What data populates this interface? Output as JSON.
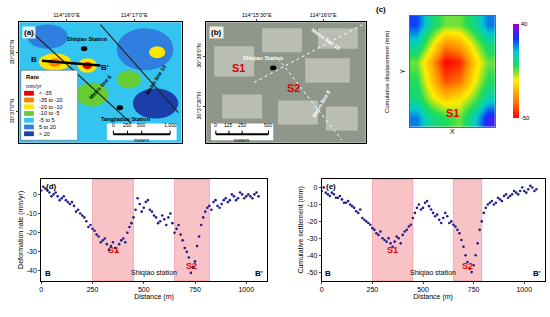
{
  "chart_data": [
    {
      "type": "map",
      "panel": "(a)",
      "xlim": [
        114.255,
        114.295
      ],
      "ylim": [
        30.608,
        30.642
      ],
      "xticks": [
        {
          "value": 114.26667,
          "label": "114°16'0\"E"
        },
        {
          "value": 114.28333,
          "label": "114°17'0\"E"
        }
      ],
      "yticks": [
        {
          "value": 30.61667,
          "label": "30°37'0\"N"
        },
        {
          "value": 30.63333,
          "label": "30°38'0\"N"
        }
      ],
      "grid": false,
      "annotations": [
        "Shiqiao Station",
        "Metro line 6",
        "Metro line 10",
        "Tangjiadun Station",
        "B",
        "B'"
      ],
      "classes_title": "Rate",
      "classes_unit": "mm/yr",
      "classes": [
        {
          "label": "< -35",
          "color": "#e60000"
        },
        {
          "label": "-35 to -20",
          "color": "#ff8000"
        },
        {
          "label": "-20 to -10",
          "color": "#ffe600"
        },
        {
          "label": "-10 to -5",
          "color": "#66cc33"
        },
        {
          "label": "-5 to 5",
          "color": "#33c4f0"
        },
        {
          "label": "5 to 20",
          "color": "#2f7fe0"
        },
        {
          "label": "> 20",
          "color": "#1a3faa"
        }
      ],
      "scale_bar": {
        "ticks": [
          0,
          250,
          500,
          {
            "value": 1000,
            "label": "1,000"
          }
        ],
        "unit": "meters"
      }
    },
    {
      "type": "map",
      "panel": "(b)",
      "xlim": [
        114.252,
        114.272
      ],
      "ylim": [
        30.619,
        30.639
      ],
      "xticks": [
        {
          "value": 114.25833,
          "label": "114°15'30\"E"
        },
        {
          "value": 114.26667,
          "label": "114°16'0\"E"
        }
      ],
      "yticks": [
        {
          "value": 30.625,
          "label": "30°37'30\"N"
        },
        {
          "value": 30.63333,
          "label": "30°38'0\"N"
        }
      ],
      "grid": false,
      "annotations": [
        "S1",
        "S2",
        "Shiqiao Station",
        "Metro line 10",
        "Metro line 6"
      ],
      "scale_bar": {
        "ticks": [
          0,
          125,
          250,
          500
        ],
        "unit": "meters"
      }
    },
    {
      "type": "heatmap",
      "panel": "(c)",
      "z": [
        [
          20,
          5,
          0,
          -5,
          10,
          30
        ],
        [
          5,
          -10,
          -20,
          -15,
          -5,
          10
        ],
        [
          0,
          -20,
          -40,
          -35,
          -15,
          0
        ],
        [
          -5,
          -25,
          -50,
          -45,
          -20,
          -5
        ],
        [
          10,
          -10,
          -30,
          -25,
          -10,
          5
        ],
        [
          25,
          5,
          -5,
          -5,
          5,
          20
        ]
      ],
      "clim": [
        -50,
        40
      ],
      "cticks": [
        -50,
        40
      ],
      "x_label": "X",
      "y_label": "Y",
      "z_label": "Cumulative displacement (mm)",
      "tick_labels": false,
      "annotations": [
        "S1"
      ]
    },
    {
      "type": "scatter",
      "panel": "(d)",
      "color": "#1f1f8f",
      "marker": "circle",
      "grid": false,
      "x_label": "Distance (m)",
      "y_label": "Deformation rate (mm/yr)",
      "xlim": [
        0,
        1100
      ],
      "xticks": [
        0,
        250,
        500,
        750,
        1000
      ],
      "ylim": [
        -45,
        8
      ],
      "yticks": [
        -40,
        -30,
        -20,
        -10,
        0
      ],
      "regions": [
        {
          "label": "S1",
          "x": [
            250,
            450
          ]
        },
        {
          "label": "S2",
          "x": [
            650,
            820
          ]
        }
      ],
      "annotations": [
        "Shiqiao station",
        "B",
        "B'"
      ],
      "x": [
        0,
        10,
        20,
        30,
        40,
        50,
        60,
        70,
        80,
        90,
        100,
        110,
        120,
        130,
        140,
        150,
        160,
        170,
        180,
        190,
        200,
        210,
        220,
        230,
        240,
        250,
        260,
        270,
        280,
        290,
        300,
        310,
        320,
        330,
        340,
        350,
        360,
        370,
        380,
        390,
        400,
        410,
        420,
        430,
        440,
        450,
        460,
        470,
        480,
        490,
        500,
        510,
        520,
        530,
        540,
        550,
        560,
        570,
        580,
        590,
        600,
        610,
        620,
        630,
        640,
        650,
        660,
        670,
        680,
        690,
        700,
        710,
        720,
        730,
        740,
        750,
        760,
        770,
        780,
        790,
        800,
        810,
        820,
        830,
        840,
        850,
        860,
        870,
        880,
        890,
        900,
        910,
        920,
        930,
        940,
        950,
        960,
        970,
        980,
        990,
        1000,
        1010,
        1020,
        1030,
        1040,
        1050,
        1060
      ],
      "values": [
        2,
        4,
        3,
        2,
        1,
        -1,
        0,
        1,
        -1,
        -3,
        -2,
        -1,
        -3,
        -4,
        -5,
        -4,
        -6,
        -9,
        -8,
        -10,
        -11,
        -12,
        -14,
        -17,
        -16,
        -18,
        -19,
        -21,
        -22,
        -25,
        -24,
        -23,
        -26,
        -29,
        -27,
        -25,
        -28,
        -30,
        -26,
        -24,
        -23,
        -25,
        -20,
        -17,
        -15,
        -12,
        -8,
        -2,
        -5,
        -9,
        -7,
        -4,
        -3,
        -8,
        -9,
        -11,
        -12,
        -15,
        -14,
        -11,
        -13,
        -16,
        -12,
        -10,
        -15,
        -20,
        -18,
        -16,
        -21,
        -24,
        -28,
        -30,
        -33,
        -41,
        -38,
        -35,
        -27,
        -22,
        -16,
        -12,
        -9,
        -7,
        -6,
        -8,
        -4,
        -3,
        -6,
        -7,
        -5,
        -3,
        -2,
        -4,
        -3,
        0,
        -1,
        -3,
        -2,
        1,
        0,
        -2,
        -1,
        0,
        -1,
        -2,
        0,
        1,
        -1
      ]
    },
    {
      "type": "scatter",
      "panel": "(e)",
      "color": "#1f1f8f",
      "marker": "circle",
      "grid": false,
      "x_label": "Distance (m)",
      "y_label": "Cumulative settlement (mm)",
      "xlim": [
        0,
        1100
      ],
      "xticks": [
        0,
        250,
        500,
        750,
        1000
      ],
      "ylim": [
        -55,
        5
      ],
      "yticks": [
        -50,
        -40,
        -30,
        -20,
        -10,
        0
      ],
      "regions": [
        {
          "label": "S1",
          "x": [
            250,
            450
          ]
        },
        {
          "label": "S2",
          "x": [
            650,
            790
          ]
        }
      ],
      "annotations": [
        "Shiqiao station",
        "B",
        "B'"
      ],
      "x": [
        0,
        10,
        20,
        30,
        40,
        50,
        60,
        70,
        80,
        90,
        100,
        110,
        120,
        130,
        140,
        150,
        160,
        170,
        180,
        190,
        200,
        210,
        220,
        230,
        240,
        250,
        260,
        270,
        280,
        290,
        300,
        310,
        320,
        330,
        340,
        350,
        360,
        370,
        380,
        390,
        400,
        410,
        420,
        430,
        440,
        450,
        460,
        470,
        480,
        490,
        500,
        510,
        520,
        530,
        540,
        550,
        560,
        570,
        580,
        590,
        600,
        610,
        620,
        630,
        640,
        650,
        660,
        670,
        680,
        690,
        700,
        710,
        720,
        730,
        740,
        750,
        760,
        770,
        780,
        790,
        800,
        810,
        820,
        830,
        840,
        850,
        860,
        870,
        880,
        890,
        900,
        910,
        920,
        930,
        940,
        950,
        960,
        970,
        980,
        990,
        1000,
        1010,
        1020,
        1030,
        1040,
        1050,
        1060
      ],
      "values": [
        -2,
        0,
        -3,
        -4,
        -5,
        -3,
        -4,
        -6,
        -6,
        -5,
        -7,
        -9,
        -9,
        -8,
        -10,
        -11,
        -12,
        -14,
        -15,
        -13,
        -18,
        -19,
        -20,
        -21,
        -22,
        -24,
        -25,
        -27,
        -28,
        -26,
        -30,
        -31,
        -32,
        -30,
        -33,
        -35,
        -32,
        -29,
        -30,
        -33,
        -28,
        -26,
        -25,
        -23,
        -22,
        -18,
        -15,
        -12,
        -10,
        -13,
        -12,
        -9,
        -8,
        -11,
        -13,
        -15,
        -17,
        -16,
        -19,
        -21,
        -18,
        -15,
        -17,
        -21,
        -20,
        -22,
        -23,
        -25,
        -27,
        -31,
        -35,
        -40,
        -44,
        -48,
        -50,
        -46,
        -40,
        -33,
        -25,
        -20,
        -15,
        -12,
        -10,
        -9,
        -8,
        -10,
        -9,
        -6,
        -7,
        -8,
        -5,
        -4,
        -6,
        -5,
        -4,
        -2,
        -3,
        -4,
        -2,
        0,
        -2,
        -3,
        -1,
        1,
        0,
        -2,
        -1
      ]
    }
  ]
}
